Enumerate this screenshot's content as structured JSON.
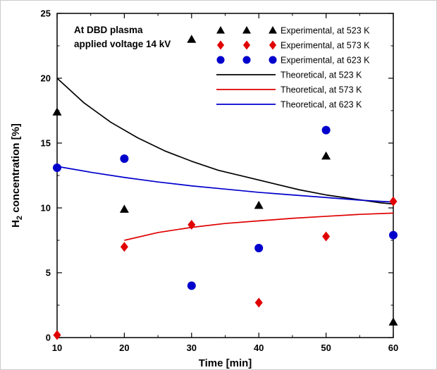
{
  "figure": {
    "annotation_lines": [
      "At DBD plasma",
      "applied voltage 14 kV"
    ]
  },
  "chart_data": {
    "type": "scatter",
    "title": "",
    "xlabel": "Time [min]",
    "ylabel": "H2 concentration [%]",
    "ylabel_parts": {
      "prefix": "H",
      "sub": "2",
      "suffix": " concentration [%]"
    },
    "xlim": [
      10,
      60
    ],
    "ylim": [
      0,
      25
    ],
    "xticks": [
      10,
      20,
      30,
      40,
      50,
      60
    ],
    "yticks": [
      0,
      5,
      10,
      15,
      20,
      25
    ],
    "x_minor_step": 5,
    "y_minor_step": 2.5,
    "grid": false,
    "legend_position": "top-right-inside",
    "colors": {
      "k523": "#000000",
      "k573": "#e00000",
      "k623": "#0000cc"
    },
    "series": [
      {
        "name": "Experimental, at 523 K",
        "type": "scatter",
        "marker": "triangle",
        "color": "#000000",
        "points": [
          [
            10,
            17.4
          ],
          [
            20,
            9.9
          ],
          [
            30,
            23.0
          ],
          [
            40,
            10.2
          ],
          [
            50,
            14.0
          ],
          [
            60,
            1.2
          ]
        ]
      },
      {
        "name": "Experimental, at 573 K",
        "type": "scatter",
        "marker": "diamond",
        "color": "#e00000",
        "points": [
          [
            10,
            0.2
          ],
          [
            20,
            7.0
          ],
          [
            30,
            8.7
          ],
          [
            40,
            2.7
          ],
          [
            50,
            7.8
          ],
          [
            60,
            10.5
          ]
        ]
      },
      {
        "name": "Experimental, at 623 K",
        "type": "scatter",
        "marker": "circle",
        "color": "#0000cc",
        "points": [
          [
            10,
            13.1
          ],
          [
            20,
            13.8
          ],
          [
            30,
            4.0
          ],
          [
            40,
            6.9
          ],
          [
            50,
            16.0
          ],
          [
            60,
            7.9
          ]
        ]
      },
      {
        "name": "Theoretical, at 523 K",
        "type": "line",
        "color": "#000000",
        "points": [
          [
            10,
            20.0
          ],
          [
            14,
            18.1
          ],
          [
            18,
            16.6
          ],
          [
            22,
            15.4
          ],
          [
            26,
            14.4
          ],
          [
            30,
            13.6
          ],
          [
            34,
            12.9
          ],
          [
            38,
            12.4
          ],
          [
            42,
            11.9
          ],
          [
            46,
            11.4
          ],
          [
            50,
            11.0
          ],
          [
            54,
            10.7
          ],
          [
            58,
            10.4
          ],
          [
            60,
            10.3
          ]
        ]
      },
      {
        "name": "Theoretical, at 573 K",
        "type": "line",
        "color": "#e00000",
        "points": [
          [
            20,
            7.5
          ],
          [
            25,
            8.1
          ],
          [
            30,
            8.5
          ],
          [
            35,
            8.8
          ],
          [
            40,
            9.0
          ],
          [
            45,
            9.2
          ],
          [
            50,
            9.35
          ],
          [
            55,
            9.5
          ],
          [
            60,
            9.6
          ]
        ]
      },
      {
        "name": "Theoretical, at 623 K",
        "type": "line",
        "color": "#0000cc",
        "points": [
          [
            10,
            13.2
          ],
          [
            15,
            12.75
          ],
          [
            20,
            12.35
          ],
          [
            25,
            12.0
          ],
          [
            30,
            11.7
          ],
          [
            35,
            11.45
          ],
          [
            40,
            11.2
          ],
          [
            45,
            11.0
          ],
          [
            50,
            10.8
          ],
          [
            55,
            10.6
          ],
          [
            60,
            10.45
          ]
        ]
      }
    ]
  }
}
